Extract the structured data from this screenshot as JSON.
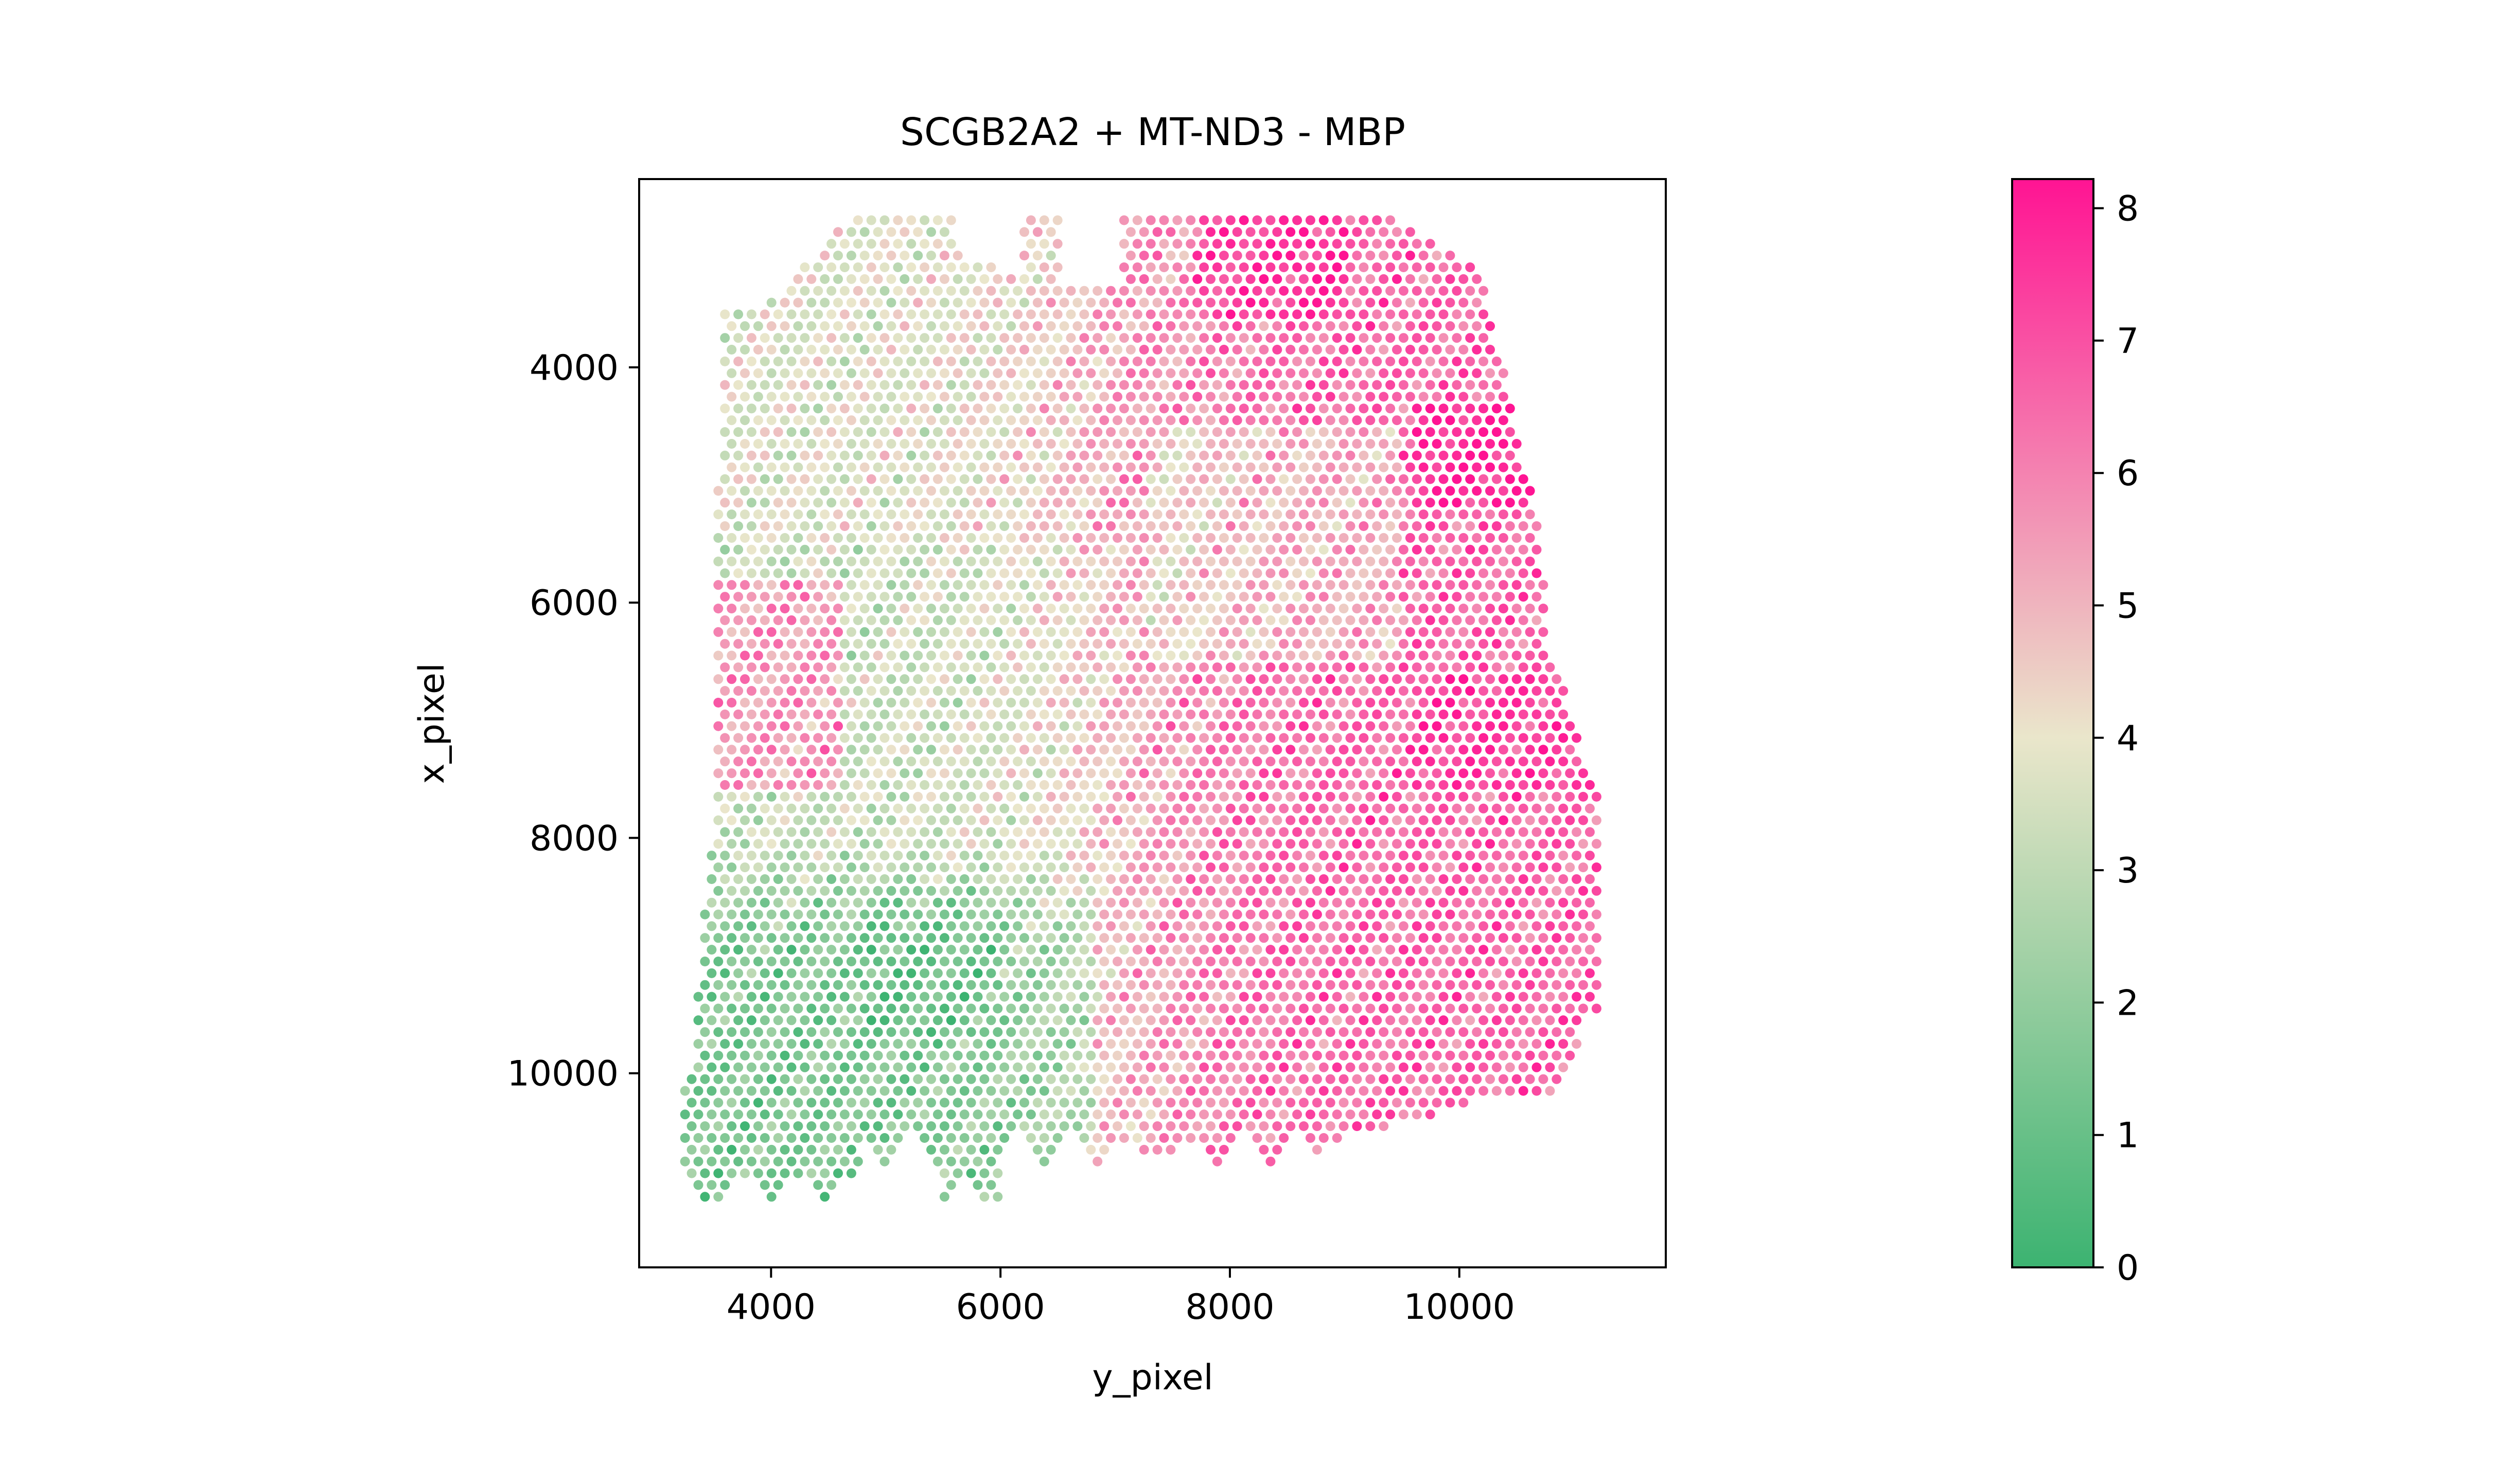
{
  "chart_data": {
    "type": "scatter",
    "title": "SCGB2A2 + MT-ND3 - MBP",
    "xlabel": "y_pixel",
    "ylabel": "x_pixel",
    "xlim": [
      2850,
      11800
    ],
    "ylim": [
      11650,
      2400
    ],
    "y_inverted": true,
    "xticks": [
      4000,
      6000,
      8000,
      10000
    ],
    "xtick_labels": [
      "4000",
      "6000",
      "8000",
      "10000"
    ],
    "yticks": [
      4000,
      6000,
      8000,
      10000
    ],
    "ytick_labels": [
      "4000",
      "6000",
      "8000",
      "10000"
    ],
    "grid": false,
    "legend": "none",
    "colorbar": {
      "min": 0,
      "max": 8.22,
      "ticks": [
        0,
        1,
        2,
        3,
        4,
        5,
        6,
        7,
        8
      ],
      "tick_labels": [
        "0",
        "1",
        "2",
        "3",
        "4",
        "5",
        "6",
        "7",
        "8"
      ],
      "colors": [
        "#3cb371",
        "#eae6cb",
        "#ff1493"
      ]
    },
    "spot_layout": {
      "note": "hexagonal Visium-style spot grid; value field summarized by region",
      "row_spacing": 100,
      "col_spacing": 116
    },
    "regions": [
      {
        "name": "lower-left low expression",
        "y_range": [
          3300,
          6900
        ],
        "x_range": [
          8200,
          11300
        ],
        "value_approx": 1.6
      },
      {
        "name": "central-left moderate",
        "y_range": [
          4000,
          7500
        ],
        "x_range": [
          5500,
          8200
        ],
        "value_approx": 3.0
      },
      {
        "name": "upper-left mixed",
        "y_range": [
          3700,
          7000
        ],
        "x_range": [
          2700,
          5500
        ],
        "value_approx": 3.8
      },
      {
        "name": "left pink cluster",
        "y_range": [
          3500,
          4600
        ],
        "x_range": [
          5700,
          7700
        ],
        "value_approx": 5.8
      },
      {
        "name": "top-right high expression",
        "y_range": [
          7700,
          10900
        ],
        "x_range": [
          2700,
          5800
        ],
        "value_approx": 6.3
      },
      {
        "name": "right high expression",
        "y_range": [
          7000,
          11200
        ],
        "x_range": [
          6500,
          10900
        ],
        "value_approx": 6.5
      }
    ]
  }
}
